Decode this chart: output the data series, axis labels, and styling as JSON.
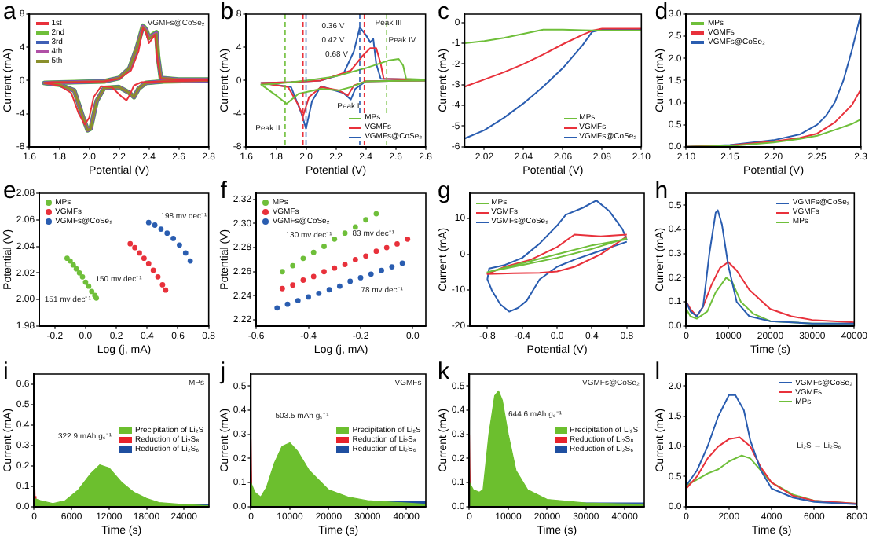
{
  "chart_data": [
    {
      "type": "line",
      "title": "a",
      "xlabel": "Potential (V)",
      "ylabel": "Current (mA)",
      "xlim": [
        1.6,
        2.8
      ],
      "xticks": [
        1.6,
        1.8,
        {
          "value": 2,
          "label": "2.0"
        },
        2.2,
        2.4,
        2.6,
        2.8
      ],
      "ylim": [
        -8,
        8
      ],
      "yticks": [
        -8,
        -4,
        0,
        4,
        8
      ],
      "grid": false,
      "legend": "top left",
      "marker": "none",
      "annotations": [
        "VGMFs@CoSe₂"
      ],
      "series": [
        {
          "name": "1st",
          "color": "#e8313b",
          "x": [
            2.8,
            2.5,
            2.35,
            2.3,
            2.27,
            2.25,
            2.22,
            2.15,
            2.08,
            2.03,
            2.0,
            1.97,
            1.93,
            1.88,
            1.8,
            1.7,
            1.75,
            1.9,
            2.1,
            2.2,
            2.28,
            2.33,
            2.36,
            2.38,
            2.4,
            2.42,
            2.44,
            2.46,
            2.48,
            2.6,
            2.8
          ],
          "values": [
            0,
            -0.1,
            -0.2,
            -0.6,
            -1.8,
            -2.4,
            -2.0,
            -0.8,
            -0.7,
            -2.0,
            -4.5,
            -5.3,
            -4.0,
            -1.5,
            -0.6,
            -0.3,
            -0.2,
            -0.2,
            -0.1,
            0.2,
            1.2,
            3.5,
            6.3,
            5.8,
            4.5,
            5.0,
            5.5,
            2.0,
            0.2,
            0.1,
            0.1
          ]
        },
        {
          "name": "2nd",
          "color": "#6fbf3a",
          "x": [
            2.8,
            2.5,
            2.38,
            2.33,
            2.3,
            2.27,
            2.2,
            2.1,
            2.05,
            2.01,
            1.99,
            1.96,
            1.9,
            1.8,
            1.7,
            1.9,
            2.1,
            2.2,
            2.27,
            2.32,
            2.36,
            2.38,
            2.4,
            2.43,
            2.45,
            2.46,
            2.48,
            2.6,
            2.8
          ],
          "values": [
            0,
            -0.1,
            -0.3,
            -1.0,
            -2.0,
            -1.5,
            -0.8,
            -0.9,
            -2.5,
            -5.8,
            -6.0,
            -4.5,
            -1.2,
            -0.5,
            -0.3,
            -0.2,
            -0.1,
            0.3,
            1.5,
            4.0,
            6.6,
            6.2,
            5.2,
            5.6,
            5.8,
            3.0,
            0.3,
            0.1,
            0.1
          ]
        },
        {
          "name": "3rd",
          "color": "#3f5fb5",
          "x": [
            2.8,
            2.5,
            2.38,
            2.33,
            2.3,
            2.27,
            2.2,
            2.1,
            2.05,
            2.01,
            1.99,
            1.96,
            1.9,
            1.8,
            1.7,
            1.9,
            2.1,
            2.2,
            2.27,
            2.32,
            2.36,
            2.38,
            2.4,
            2.43,
            2.45,
            2.46,
            2.48,
            2.6,
            2.8
          ],
          "values": [
            0,
            -0.1,
            -0.3,
            -1.0,
            -2.0,
            -1.5,
            -0.8,
            -0.9,
            -2.5,
            -5.8,
            -6.0,
            -4.5,
            -1.2,
            -0.5,
            -0.3,
            -0.2,
            -0.1,
            0.3,
            1.5,
            4.0,
            6.5,
            6.1,
            5.1,
            5.5,
            5.7,
            3.0,
            0.3,
            0.1,
            0.1
          ]
        },
        {
          "name": "4th",
          "color": "#b04fa6",
          "x": [
            2.8,
            2.5,
            2.38,
            2.33,
            2.3,
            2.27,
            2.2,
            2.1,
            2.05,
            2.01,
            1.99,
            1.96,
            1.9,
            1.8,
            1.7,
            1.9,
            2.1,
            2.2,
            2.27,
            2.32,
            2.36,
            2.38,
            2.4,
            2.43,
            2.45,
            2.46,
            2.48,
            2.6,
            2.8
          ],
          "values": [
            0,
            -0.1,
            -0.3,
            -1.0,
            -2.0,
            -1.5,
            -0.8,
            -0.9,
            -2.5,
            -5.8,
            -6.0,
            -4.5,
            -1.2,
            -0.5,
            -0.3,
            -0.2,
            -0.1,
            0.3,
            1.5,
            4.0,
            6.5,
            6.1,
            5.1,
            5.5,
            5.7,
            3.0,
            0.3,
            0.1,
            0.1
          ]
        },
        {
          "name": "5th",
          "color": "#8a8f2c",
          "x": [
            2.8,
            2.5,
            2.38,
            2.33,
            2.3,
            2.27,
            2.2,
            2.1,
            2.05,
            2.01,
            1.99,
            1.96,
            1.9,
            1.8,
            1.7,
            1.9,
            2.1,
            2.2,
            2.27,
            2.32,
            2.36,
            2.38,
            2.4,
            2.43,
            2.45,
            2.46,
            2.48,
            2.6,
            2.8
          ],
          "values": [
            0,
            -0.1,
            -0.3,
            -1.0,
            -2.0,
            -1.5,
            -0.8,
            -0.9,
            -2.5,
            -5.8,
            -6.0,
            -4.5,
            -1.2,
            -0.5,
            -0.3,
            -0.2,
            -0.1,
            0.3,
            1.5,
            4.0,
            6.4,
            6.0,
            5.0,
            5.4,
            5.6,
            3.0,
            0.3,
            0.1,
            0.1
          ]
        }
      ]
    },
    {
      "type": "line",
      "title": "b",
      "xlabel": "Potential (V)",
      "ylabel": "Current (mA)",
      "xlim": [
        1.6,
        2.8
      ],
      "xticks": [
        1.6,
        1.8,
        {
          "value": 2,
          "label": "2.0"
        },
        2.2,
        2.4,
        2.6,
        2.8
      ],
      "ylim": [
        -8,
        8
      ],
      "yticks": [
        -8,
        -4,
        0,
        4,
        8
      ],
      "grid": false,
      "legend": "bottom right",
      "marker": "none",
      "ref_lines": [
        {
          "axis": "x",
          "value": 2.0,
          "color": "#2a5db0",
          "line_style": "dashed"
        },
        {
          "axis": "x",
          "value": 2.36,
          "color": "#2a5db0",
          "line_style": "dashed"
        },
        {
          "axis": "x",
          "value": 1.98,
          "color": "#e8313b",
          "line_style": "dashed"
        },
        {
          "axis": "x",
          "value": 2.39,
          "color": "#e8313b",
          "line_style": "dashed"
        },
        {
          "axis": "x",
          "value": 1.86,
          "color": "#6fbf3a",
          "line_style": "dashed"
        },
        {
          "axis": "x",
          "value": 2.54,
          "color": "#6fbf3a",
          "line_style": "dashed"
        }
      ],
      "annotations": [
        "0.36 V",
        "0.42 V",
        "0.68 V",
        {
          "text": "Peak III",
          "x": 2.55,
          "y": 6.9
        },
        "Peak IV",
        {
          "text": "Peak I",
          "x": 2.28,
          "y": -3.2
        },
        "Peak II"
      ],
      "series": [
        {
          "name": "MPs",
          "color": "#6fbf3a",
          "x": [
            2.8,
            2.4,
            2.3,
            2.22,
            2.1,
            1.95,
            1.87,
            1.8,
            1.7,
            1.8,
            2.0,
            2.2,
            2.4,
            2.55,
            2.62,
            2.65,
            2.67,
            2.8
          ],
          "values": [
            0,
            -0.1,
            -0.8,
            -1.2,
            -1.0,
            -1.6,
            -2.8,
            -1.8,
            -0.5,
            -0.4,
            0,
            0.5,
            1.5,
            2.4,
            2.6,
            1.8,
            0.2,
            0.1
          ]
        },
        {
          "name": "VGMFs",
          "color": "#e8313b",
          "x": [
            2.8,
            2.4,
            2.32,
            2.28,
            2.22,
            2.1,
            2.02,
            1.98,
            1.95,
            1.88,
            1.7,
            1.9,
            2.1,
            2.3,
            2.38,
            2.43,
            2.47,
            2.5,
            2.52,
            2.8
          ],
          "values": [
            0,
            -0.1,
            -0.6,
            -1.8,
            -1.2,
            -0.8,
            -2.0,
            -4.3,
            -3.0,
            -0.8,
            -0.3,
            -0.2,
            0,
            1.2,
            3.0,
            3.9,
            3.9,
            2.0,
            0.2,
            0.1
          ]
        },
        {
          "name": "VGMFs@CoSe₂",
          "color": "#2a5db0",
          "x": [
            2.8,
            2.4,
            2.33,
            2.3,
            2.25,
            2.1,
            2.04,
            2.0,
            1.97,
            1.9,
            1.7,
            1.9,
            2.1,
            2.25,
            2.32,
            2.36,
            2.4,
            2.43,
            2.45,
            2.47,
            2.5,
            2.8
          ],
          "values": [
            0,
            -0.1,
            -1.0,
            -2.3,
            -1.5,
            -0.7,
            -2.5,
            -5.8,
            -4.0,
            -0.8,
            -0.3,
            -0.2,
            0,
            0.8,
            3.5,
            6.4,
            5.5,
            4.6,
            5.0,
            2.0,
            0.2,
            0.1
          ]
        }
      ]
    },
    {
      "type": "line",
      "title": "c",
      "xlabel": "Potential (V)",
      "ylabel": "Current (mA)",
      "xlim": [
        2.01,
        2.1
      ],
      "xticks": [
        2.02,
        2.04,
        2.06,
        2.08,
        {
          "value": 2.1,
          "label": "2.10"
        }
      ],
      "ylim": [
        -6,
        0.4
      ],
      "yticks": [
        -6,
        -5,
        -4,
        -3,
        -2,
        -1,
        0
      ],
      "grid": false,
      "legend": "bottom right",
      "marker": "none",
      "series": [
        {
          "name": "MPs",
          "color": "#6fbf3a",
          "x": [
            2.01,
            2.02,
            2.03,
            2.04,
            2.05,
            2.06,
            2.07,
            2.08,
            2.1
          ],
          "values": [
            -1.0,
            -0.9,
            -0.75,
            -0.55,
            -0.35,
            -0.35,
            -0.38,
            -0.4,
            -0.4
          ]
        },
        {
          "name": "VGMFs",
          "color": "#e8313b",
          "x": [
            2.01,
            2.02,
            2.03,
            2.04,
            2.05,
            2.06,
            2.07,
            2.075,
            2.08,
            2.1
          ],
          "values": [
            -3.1,
            -2.75,
            -2.4,
            -2.0,
            -1.55,
            -1.05,
            -0.6,
            -0.4,
            -0.3,
            -0.3
          ]
        },
        {
          "name": "VGMFs@CoSe₂",
          "color": "#2a5db0",
          "x": [
            2.01,
            2.02,
            2.03,
            2.04,
            2.05,
            2.06,
            2.07,
            2.075,
            2.08,
            2.1
          ],
          "values": [
            -5.6,
            -5.2,
            -4.6,
            -3.9,
            -3.1,
            -2.2,
            -1.1,
            -0.45,
            -0.35,
            -0.35
          ]
        }
      ]
    },
    {
      "type": "line",
      "title": "d",
      "xlabel": "Potential (V)",
      "ylabel": "Current (mA)",
      "xlim": [
        2.1,
        2.3
      ],
      "xticks": [
        {
          "value": 2.1,
          "label": "2.10"
        },
        2.15,
        {
          "value": 2.2,
          "label": "2.20"
        },
        2.25,
        2.3
      ],
      "ylim": [
        0,
        3
      ],
      "yticks": [
        {
          "value": 0,
          "label": "0.0"
        },
        0.5,
        {
          "value": 1,
          "label": "1.0"
        },
        1.5,
        {
          "value": 2,
          "label": "2.0"
        },
        2.5,
        {
          "value": 3,
          "label": "3.0"
        }
      ],
      "grid": false,
      "legend": "top left",
      "marker": "none",
      "series": [
        {
          "name": "MPs",
          "color": "#6fbf3a",
          "x": [
            2.1,
            2.15,
            2.2,
            2.23,
            2.25,
            2.27,
            2.29,
            2.3
          ],
          "values": [
            0,
            0.02,
            0.1,
            0.18,
            0.25,
            0.38,
            0.52,
            0.62
          ]
        },
        {
          "name": "VGMFs",
          "color": "#e8313b",
          "x": [
            2.1,
            2.15,
            2.2,
            2.23,
            2.25,
            2.27,
            2.29,
            2.3
          ],
          "values": [
            0,
            0.03,
            0.12,
            0.2,
            0.3,
            0.55,
            0.95,
            1.3
          ]
        },
        {
          "name": "VGMFs@CoSe₂",
          "color": "#2a5db0",
          "x": [
            2.1,
            2.15,
            2.2,
            2.23,
            2.25,
            2.26,
            2.27,
            2.28,
            2.29,
            2.3
          ],
          "values": [
            0,
            0.04,
            0.15,
            0.28,
            0.5,
            0.7,
            1.0,
            1.5,
            2.2,
            3.0
          ]
        }
      ]
    },
    {
      "type": "scatter",
      "title": "e",
      "xlabel": "Log (j, mA)",
      "ylabel": "Potential (V)",
      "xlim": [
        -0.3,
        0.8
      ],
      "xticks": [
        -0.2,
        {
          "value": 0,
          "label": "0.0"
        },
        0.2,
        0.4,
        0.6,
        0.8
      ],
      "ylim": [
        1.98,
        2.08
      ],
      "yticks": [
        1.98,
        {
          "value": 2,
          "label": "2.00"
        },
        2.02,
        2.04,
        2.06,
        2.08
      ],
      "grid": false,
      "legend": "top left",
      "marker": "circle",
      "annotations": [
        "151 mv dec⁻¹",
        "150 mv dec⁻¹",
        "198 mv dec⁻¹"
      ],
      "series": [
        {
          "name": "MPs",
          "color": "#6fbf3a",
          "x": [
            -0.12,
            -0.1,
            -0.08,
            -0.06,
            -0.04,
            -0.02,
            0,
            0.02,
            0.04,
            0.06,
            0.07
          ],
          "values": [
            2.031,
            2.029,
            2.026,
            2.023,
            2.02,
            2.017,
            2.013,
            2.01,
            2.006,
            2.003,
            2.001
          ]
        },
        {
          "name": "VGMFs",
          "color": "#e8313b",
          "x": [
            0.29,
            0.32,
            0.35,
            0.38,
            0.41,
            0.44,
            0.47,
            0.5,
            0.52
          ],
          "values": [
            2.042,
            2.039,
            2.035,
            2.031,
            2.027,
            2.022,
            2.017,
            2.011,
            2.007
          ]
        },
        {
          "name": "VGMFs@CoSe₂",
          "color": "#2a5db0",
          "x": [
            0.41,
            0.45,
            0.49,
            0.53,
            0.57,
            0.61,
            0.65,
            0.68
          ],
          "values": [
            2.058,
            2.056,
            2.053,
            2.05,
            2.046,
            2.041,
            2.035,
            2.029
          ]
        }
      ]
    },
    {
      "type": "scatter",
      "title": "f",
      "xlabel": "Log (j, mA)",
      "ylabel": "Potential (V)",
      "xlim": [
        -0.6,
        0.05
      ],
      "xticks": [
        -0.6,
        -0.4,
        -0.2,
        {
          "value": 0,
          "label": "0.0"
        }
      ],
      "ylim": [
        2.215,
        2.325
      ],
      "yticks": [
        2.22,
        2.24,
        2.26,
        2.28,
        {
          "value": 2.3,
          "label": "2.30"
        },
        2.32
      ],
      "grid": false,
      "legend": "top left",
      "marker": "circle",
      "annotations": [
        "130 mv dec⁻¹",
        "83 mv dec⁻¹",
        "78 mv dec⁻¹"
      ],
      "series": [
        {
          "name": "MPs",
          "color": "#6fbf3a",
          "x": [
            -0.5,
            -0.46,
            -0.42,
            -0.38,
            -0.34,
            -0.3,
            -0.26,
            -0.22,
            -0.18,
            -0.14
          ],
          "values": [
            2.26,
            2.265,
            2.271,
            2.276,
            2.281,
            2.287,
            2.292,
            2.297,
            2.303,
            2.308
          ]
        },
        {
          "name": "VGMFs",
          "color": "#e8313b",
          "x": [
            -0.5,
            -0.46,
            -0.42,
            -0.38,
            -0.34,
            -0.3,
            -0.26,
            -0.22,
            -0.18,
            -0.14,
            -0.1,
            -0.06,
            -0.02
          ],
          "values": [
            2.246,
            2.249,
            2.253,
            2.256,
            2.26,
            2.263,
            2.266,
            2.27,
            2.273,
            2.277,
            2.28,
            2.283,
            2.287
          ]
        },
        {
          "name": "VGMFs@CoSe₂",
          "color": "#2a5db0",
          "x": [
            -0.52,
            -0.48,
            -0.44,
            -0.4,
            -0.36,
            -0.32,
            -0.28,
            -0.24,
            -0.2,
            -0.16,
            -0.12,
            -0.08,
            -0.04
          ],
          "values": [
            2.23,
            2.233,
            2.236,
            2.239,
            2.242,
            2.245,
            2.248,
            2.252,
            2.255,
            2.258,
            2.261,
            2.264,
            2.267
          ]
        }
      ]
    },
    {
      "type": "line",
      "title": "g",
      "xlabel": "Potential (V)",
      "ylabel": "Current (mA)",
      "xlim": [
        -1,
        1
      ],
      "xticks": [
        -0.8,
        -0.4,
        {
          "value": 0,
          "label": "0.0"
        },
        0.4,
        0.8
      ],
      "ylim": [
        -20,
        17
      ],
      "yticks": [
        -20,
        -10,
        0,
        10
      ],
      "grid": false,
      "legend": "top left",
      "marker": "none",
      "series": [
        {
          "name": "MPs",
          "color": "#6fbf3a",
          "x": [
            0.8,
            0.4,
            0,
            -0.4,
            -0.8,
            -0.4,
            0,
            0.4,
            0.8
          ],
          "values": [
            4.5,
            1.5,
            -1,
            -3,
            -5,
            -2.5,
            0,
            2.5,
            4.2
          ]
        },
        {
          "name": "VGMFs",
          "color": "#e8313b",
          "x": [
            0.8,
            0.5,
            0.2,
            0,
            -0.2,
            -0.5,
            -0.8,
            -0.6,
            -0.3,
            0,
            0.2,
            0.5,
            0.8
          ],
          "values": [
            5,
            0,
            -3.5,
            -4.8,
            -5.2,
            -5.3,
            -5.5,
            -3.5,
            -1.5,
            2,
            5.5,
            5,
            5.5
          ]
        },
        {
          "name": "VGMFs@CoSe₂",
          "color": "#2a5db0",
          "x": [
            0.8,
            0.5,
            0.2,
            0,
            -0.2,
            -0.35,
            -0.45,
            -0.55,
            -0.65,
            -0.75,
            -0.8,
            -0.78,
            -0.6,
            -0.4,
            -0.2,
            0,
            0.1,
            0.3,
            0.45,
            0.6,
            0.75,
            0.8
          ],
          "values": [
            3.5,
            1,
            -1.5,
            -3.5,
            -7,
            -13,
            -15,
            -16,
            -14,
            -10,
            -7,
            -4,
            -3,
            -1,
            3,
            8,
            11,
            13,
            15,
            12,
            7,
            4
          ]
        }
      ]
    },
    {
      "type": "line",
      "title": "h",
      "xlabel": "Time (s)",
      "ylabel": "Current (mA)",
      "xlim": [
        0,
        40000
      ],
      "xticks": [
        0,
        10000,
        20000,
        30000,
        40000
      ],
      "ylim": [
        0,
        0.55
      ],
      "yticks": [
        {
          "value": 0,
          "label": "0.0"
        },
        0.1,
        0.2,
        0.3,
        0.4,
        0.5
      ],
      "grid": false,
      "legend": "top right",
      "marker": "none",
      "series": [
        {
          "name": "VGMFs@CoSe₂",
          "color": "#2a5db0",
          "x": [
            0,
            1000,
            2500,
            4000,
            5500,
            7000,
            7500,
            8500,
            10000,
            12000,
            15000,
            20000,
            30000,
            40000
          ],
          "values": [
            0.1,
            0.06,
            0.04,
            0.08,
            0.3,
            0.47,
            0.48,
            0.42,
            0.25,
            0.1,
            0.04,
            0.02,
            0.01,
            0.01
          ]
        },
        {
          "name": "VGMFs",
          "color": "#e8313b",
          "x": [
            0,
            1000,
            2500,
            4000,
            6000,
            8000,
            10000,
            12000,
            15000,
            20000,
            25000,
            30000,
            40000
          ],
          "values": [
            0.1,
            0.07,
            0.04,
            0.08,
            0.17,
            0.24,
            0.265,
            0.23,
            0.15,
            0.07,
            0.04,
            0.025,
            0.015
          ]
        },
        {
          "name": "MPs",
          "color": "#6fbf3a",
          "x": [
            0,
            1000,
            2500,
            5000,
            7000,
            9500,
            11000,
            13000,
            16000,
            20000,
            30000,
            40000
          ],
          "values": [
            0.07,
            0.04,
            0.03,
            0.06,
            0.14,
            0.2,
            0.18,
            0.1,
            0.05,
            0.02,
            0.01,
            0.01
          ]
        }
      ]
    },
    {
      "type": "area",
      "title": "i",
      "xlabel": "Time (s)",
      "ylabel": "Current (mA)",
      "xlim": [
        0,
        28000
      ],
      "xticks": [
        0,
        6000,
        12000,
        18000,
        24000
      ],
      "ylim": [
        0,
        0.65
      ],
      "yticks": [
        {
          "value": 0,
          "label": "0.0"
        },
        0.1,
        0.2,
        0.3,
        0.4,
        0.5,
        0.6
      ],
      "grid": false,
      "legend": "right",
      "annotations": [
        "MPs",
        "322.9 mAh gₛ⁻¹"
      ],
      "series": [
        {
          "name": "Precipitation of Li₂S",
          "color": "#6cbf2e",
          "x": [
            0,
            1000,
            3000,
            5000,
            7000,
            9000,
            10500,
            12000,
            14000,
            16000,
            18000,
            20000,
            24000,
            28000
          ],
          "values": [
            0.04,
            0.03,
            0.015,
            0.03,
            0.08,
            0.16,
            0.205,
            0.19,
            0.12,
            0.07,
            0.04,
            0.02,
            0.01,
            0.005
          ]
        },
        {
          "name": "Reduction of Li₂S₈",
          "color": "#e8232b",
          "x": [
            0,
            150,
            300
          ],
          "values": [
            0.25,
            0.05,
            0
          ]
        },
        {
          "name": "Reduction of Li₂S₆",
          "color": "#1f4fa0",
          "x": [
            0,
            28000
          ],
          "values": [
            0.008,
            0.008
          ]
        }
      ]
    },
    {
      "type": "area",
      "title": "j",
      "xlabel": "Time (s)",
      "ylabel": "Current (mA)",
      "xlim": [
        0,
        45000
      ],
      "xticks": [
        0,
        10000,
        20000,
        30000,
        40000
      ],
      "ylim": [
        0,
        0.55
      ],
      "yticks": [
        {
          "value": 0,
          "label": "0.0"
        },
        0.1,
        0.2,
        0.3,
        0.4,
        0.5
      ],
      "grid": false,
      "legend": "right",
      "annotations": [
        "VGMFs",
        "503.5 mAh gₛ⁻¹"
      ],
      "series": [
        {
          "name": "Precipitation of Li₂S",
          "color": "#6cbf2e",
          "x": [
            0,
            1000,
            2500,
            4000,
            6000,
            8000,
            10000,
            12000,
            15000,
            20000,
            25000,
            30000,
            40000,
            45000
          ],
          "values": [
            0.1,
            0.06,
            0.04,
            0.08,
            0.18,
            0.25,
            0.265,
            0.23,
            0.15,
            0.07,
            0.04,
            0.025,
            0.015,
            0.01
          ]
        },
        {
          "name": "Reduction of Li₂S₈",
          "color": "#e8232b",
          "x": [
            0,
            200,
            400
          ],
          "values": [
            0.28,
            0.05,
            0
          ]
        },
        {
          "name": "Reduction of Li₂S₆",
          "color": "#1f4fa0",
          "x": [
            0,
            45000
          ],
          "values": [
            0.02,
            0.02
          ]
        }
      ]
    },
    {
      "type": "area",
      "title": "k",
      "xlabel": "Time (s)",
      "ylabel": "Current (mA)",
      "xlim": [
        0,
        45000
      ],
      "xticks": [
        0,
        10000,
        20000,
        30000,
        40000
      ],
      "ylim": [
        0,
        0.55
      ],
      "yticks": [
        {
          "value": 0,
          "label": "0.0"
        },
        0.1,
        0.2,
        0.3,
        0.4,
        0.5
      ],
      "grid": false,
      "legend": "right",
      "annotations": [
        "VGMFs@CoSe₂",
        "644.6 mAh gₛ⁻¹"
      ],
      "series": [
        {
          "name": "Precipitation of Li₂S",
          "color": "#6cbf2e",
          "x": [
            0,
            1000,
            2500,
            3500,
            5000,
            6500,
            7500,
            8500,
            10000,
            12000,
            15000,
            20000,
            30000,
            45000
          ],
          "values": [
            0.1,
            0.07,
            0.06,
            0.07,
            0.3,
            0.46,
            0.48,
            0.44,
            0.3,
            0.15,
            0.07,
            0.03,
            0.015,
            0.01
          ]
        },
        {
          "name": "Reduction of Li₂S₈",
          "color": "#e8232b",
          "x": [
            0,
            200,
            400
          ],
          "values": [
            0.3,
            0.05,
            0
          ]
        },
        {
          "name": "Reduction of Li₂S₆",
          "color": "#1f4fa0",
          "x": [
            0,
            45000
          ],
          "values": [
            0.015,
            0.015
          ]
        }
      ]
    },
    {
      "type": "line",
      "title": "l",
      "xlabel": "Time (s)",
      "ylabel": "Current (mA)",
      "xlim": [
        0,
        8000
      ],
      "xticks": [
        0,
        2000,
        4000,
        6000,
        8000
      ],
      "ylim": [
        0,
        2.2
      ],
      "yticks": [
        {
          "value": 0,
          "label": "0.0"
        },
        0.5,
        {
          "value": 1,
          "label": "1.0"
        },
        1.5,
        {
          "value": 2,
          "label": "2.0"
        }
      ],
      "grid": false,
      "legend": "top right",
      "marker": "none",
      "annotations": [
        "Li₂S → Li₂S₆"
      ],
      "series": [
        {
          "name": "VGMFs@CoSe₂",
          "color": "#2a5db0",
          "x": [
            0,
            500,
            1000,
            1500,
            2000,
            2300,
            2700,
            3000,
            3500,
            4000,
            5000,
            6000,
            8000
          ],
          "values": [
            0.35,
            0.6,
            1.0,
            1.5,
            1.85,
            1.85,
            1.6,
            1.1,
            0.6,
            0.3,
            0.15,
            0.08,
            0.04
          ]
        },
        {
          "name": "VGMFs",
          "color": "#e8313b",
          "x": [
            0,
            500,
            1000,
            1500,
            2000,
            2500,
            3000,
            3500,
            4000,
            5000,
            6000,
            8000
          ],
          "values": [
            0.3,
            0.5,
            0.8,
            1.0,
            1.12,
            1.15,
            1.0,
            0.65,
            0.4,
            0.18,
            0.1,
            0.05
          ]
        },
        {
          "name": "MPs",
          "color": "#6fbf3a",
          "x": [
            0,
            500,
            1000,
            1500,
            2000,
            2600,
            3000,
            3500,
            4000,
            5000,
            6000,
            8000
          ],
          "values": [
            0.35,
            0.45,
            0.55,
            0.62,
            0.75,
            0.85,
            0.8,
            0.6,
            0.4,
            0.2,
            0.1,
            0.05
          ]
        }
      ]
    }
  ]
}
